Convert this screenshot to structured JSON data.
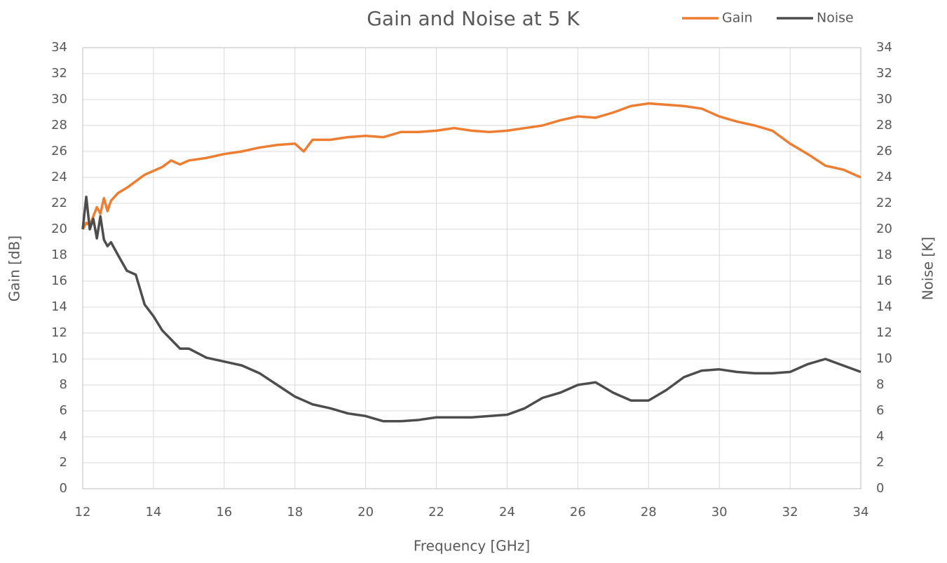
{
  "chart_data": {
    "type": "line",
    "title": "Gain and Noise at 5 K",
    "x_label": "Frequency [GHz]",
    "y_label": "Gain [dB]",
    "y2_label": "Noise [K]",
    "x": [
      12,
      12.1,
      12.2,
      12.3,
      12.4,
      12.5,
      12.6,
      12.7,
      12.8,
      13,
      13.25,
      13.5,
      13.75,
      14,
      14.25,
      14.5,
      14.75,
      15,
      15.5,
      16,
      16.5,
      17,
      17.5,
      18,
      18.25,
      18.5,
      19,
      19.5,
      20,
      20.5,
      21,
      21.5,
      22,
      22.5,
      23,
      23.5,
      24,
      24.5,
      25,
      25.5,
      26,
      26.5,
      27,
      27.5,
      28,
      28.5,
      29,
      29.5,
      30,
      30.5,
      31,
      31.5,
      32,
      32.5,
      33,
      33.5,
      34
    ],
    "series": [
      {
        "name": "Gain",
        "color": "#ed7d31",
        "values": [
          20,
          20.5,
          20.3,
          21,
          21.7,
          21.2,
          22.4,
          21.4,
          22.2,
          22.8,
          23.2,
          23.7,
          24.2,
          24.5,
          24.8,
          25.3,
          25.0,
          25.3,
          25.5,
          25.8,
          26.0,
          26.3,
          26.5,
          26.6,
          26.0,
          26.9,
          26.9,
          27.1,
          27.2,
          27.1,
          27.5,
          27.5,
          27.6,
          27.8,
          27.6,
          27.5,
          27.6,
          27.8,
          28.0,
          28.4,
          28.7,
          28.6,
          29.0,
          29.5,
          29.7,
          29.6,
          29.5,
          29.3,
          28.7,
          28.3,
          28.0,
          27.6,
          26.6,
          25.8,
          24.9,
          24.6,
          24.0
        ]
      },
      {
        "name": "Noise",
        "color": "#4d4d4d",
        "axis": "y2",
        "values": [
          20,
          22.5,
          20,
          20.8,
          19.3,
          21,
          19.2,
          18.7,
          19,
          18,
          16.8,
          16.5,
          14.2,
          13.3,
          12.2,
          11.5,
          10.8,
          10.8,
          10.1,
          9.8,
          9.5,
          8.9,
          8.0,
          7.1,
          6.8,
          6.5,
          6.2,
          5.8,
          5.6,
          5.2,
          5.2,
          5.3,
          5.5,
          5.5,
          5.5,
          5.6,
          5.7,
          6.2,
          7.0,
          7.4,
          8.0,
          8.2,
          7.4,
          6.8,
          6.8,
          7.6,
          8.6,
          9.1,
          9.2,
          9.0,
          8.9,
          8.9,
          9.0,
          9.6,
          10.0,
          9.5,
          9.0
        ]
      }
    ],
    "xlim": [
      12,
      34
    ],
    "xticks": [
      12,
      14,
      16,
      18,
      20,
      22,
      24,
      26,
      28,
      30,
      32,
      34
    ],
    "ylim": [
      0,
      34
    ],
    "yticks": [
      0,
      2,
      4,
      6,
      8,
      10,
      12,
      14,
      16,
      18,
      20,
      22,
      24,
      26,
      28,
      30,
      32,
      34
    ],
    "y2lim": [
      0,
      34
    ],
    "y2ticks": [
      0,
      2,
      4,
      6,
      8,
      10,
      12,
      14,
      16,
      18,
      20,
      22,
      24,
      26,
      28,
      30,
      32,
      34
    ],
    "grid": true,
    "legend": "top-right"
  }
}
